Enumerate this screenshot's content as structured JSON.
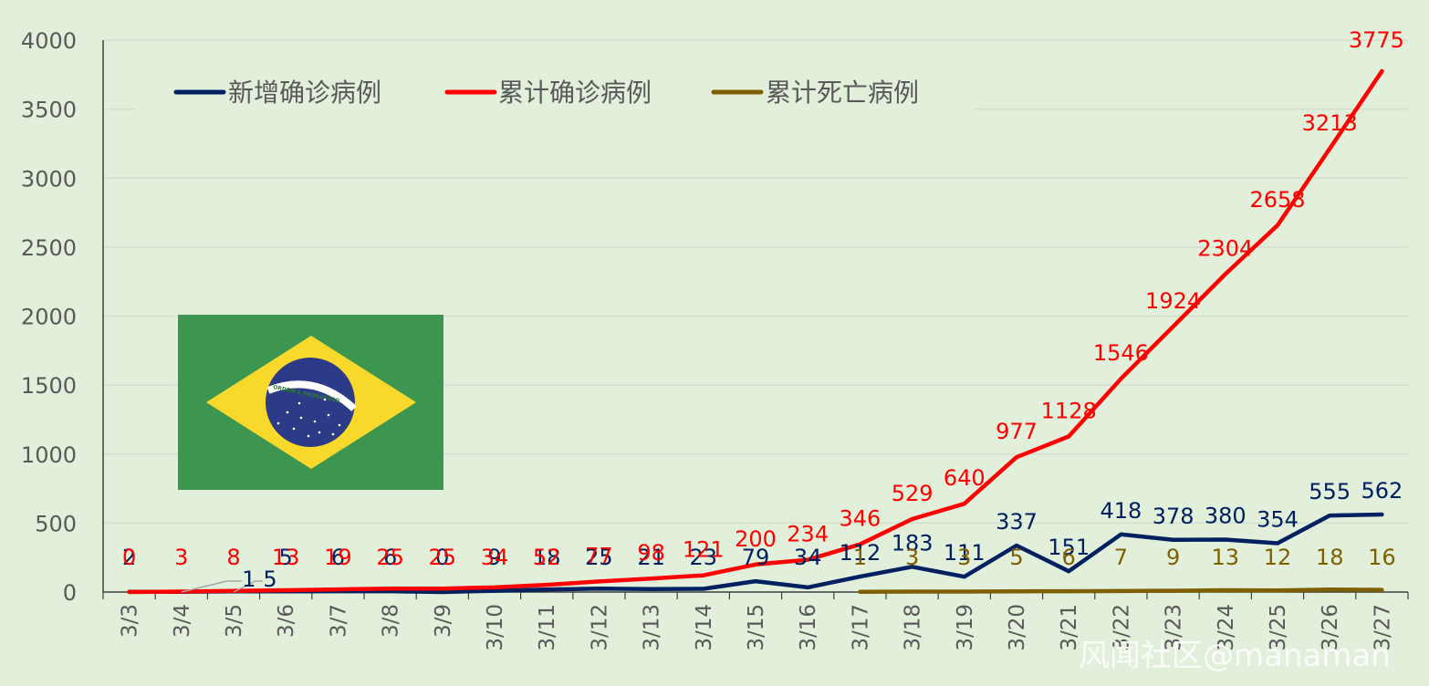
{
  "chart_data": {
    "type": "line",
    "categories": [
      "3/3",
      "3/4",
      "3/5",
      "3/6",
      "3/7",
      "3/8",
      "3/9",
      "3/10",
      "3/11",
      "3/12",
      "3/13",
      "3/14",
      "3/15",
      "3/16",
      "3/17",
      "3/18",
      "3/19",
      "3/20",
      "3/21",
      "3/22",
      "3/23",
      "3/24",
      "3/25",
      "3/26",
      "3/27"
    ],
    "ylim": [
      0,
      4000
    ],
    "yticks": [
      0,
      500,
      1000,
      1500,
      2000,
      2500,
      3000,
      3500,
      4000
    ],
    "grid": true,
    "legend_position": "top-left",
    "series": [
      {
        "name": "新增确诊病例",
        "color": "#002060",
        "values": [
          2,
          1,
          5,
          5,
          6,
          6,
          0,
          9,
          18,
          25,
          21,
          23,
          79,
          34,
          112,
          183,
          111,
          337,
          151,
          418,
          378,
          380,
          354,
          555,
          562
        ]
      },
      {
        "name": "累计确诊病例",
        "color": "#ff0000",
        "values": [
          0,
          3,
          8,
          13,
          19,
          25,
          25,
          34,
          52,
          77,
          98,
          121,
          200,
          234,
          346,
          529,
          640,
          977,
          1128,
          1546,
          1924,
          2304,
          2658,
          3213,
          3775
        ]
      },
      {
        "name": "累计死亡病例",
        "color": "#7f6000",
        "values": [
          null,
          null,
          null,
          null,
          null,
          null,
          null,
          null,
          null,
          null,
          null,
          null,
          null,
          null,
          1,
          3,
          3,
          5,
          6,
          7,
          9,
          13,
          12,
          18,
          16
        ]
      }
    ]
  },
  "flag": {
    "motto": "ORDEM E PROGRESSO"
  },
  "watermark": "风闻社区@manaman"
}
